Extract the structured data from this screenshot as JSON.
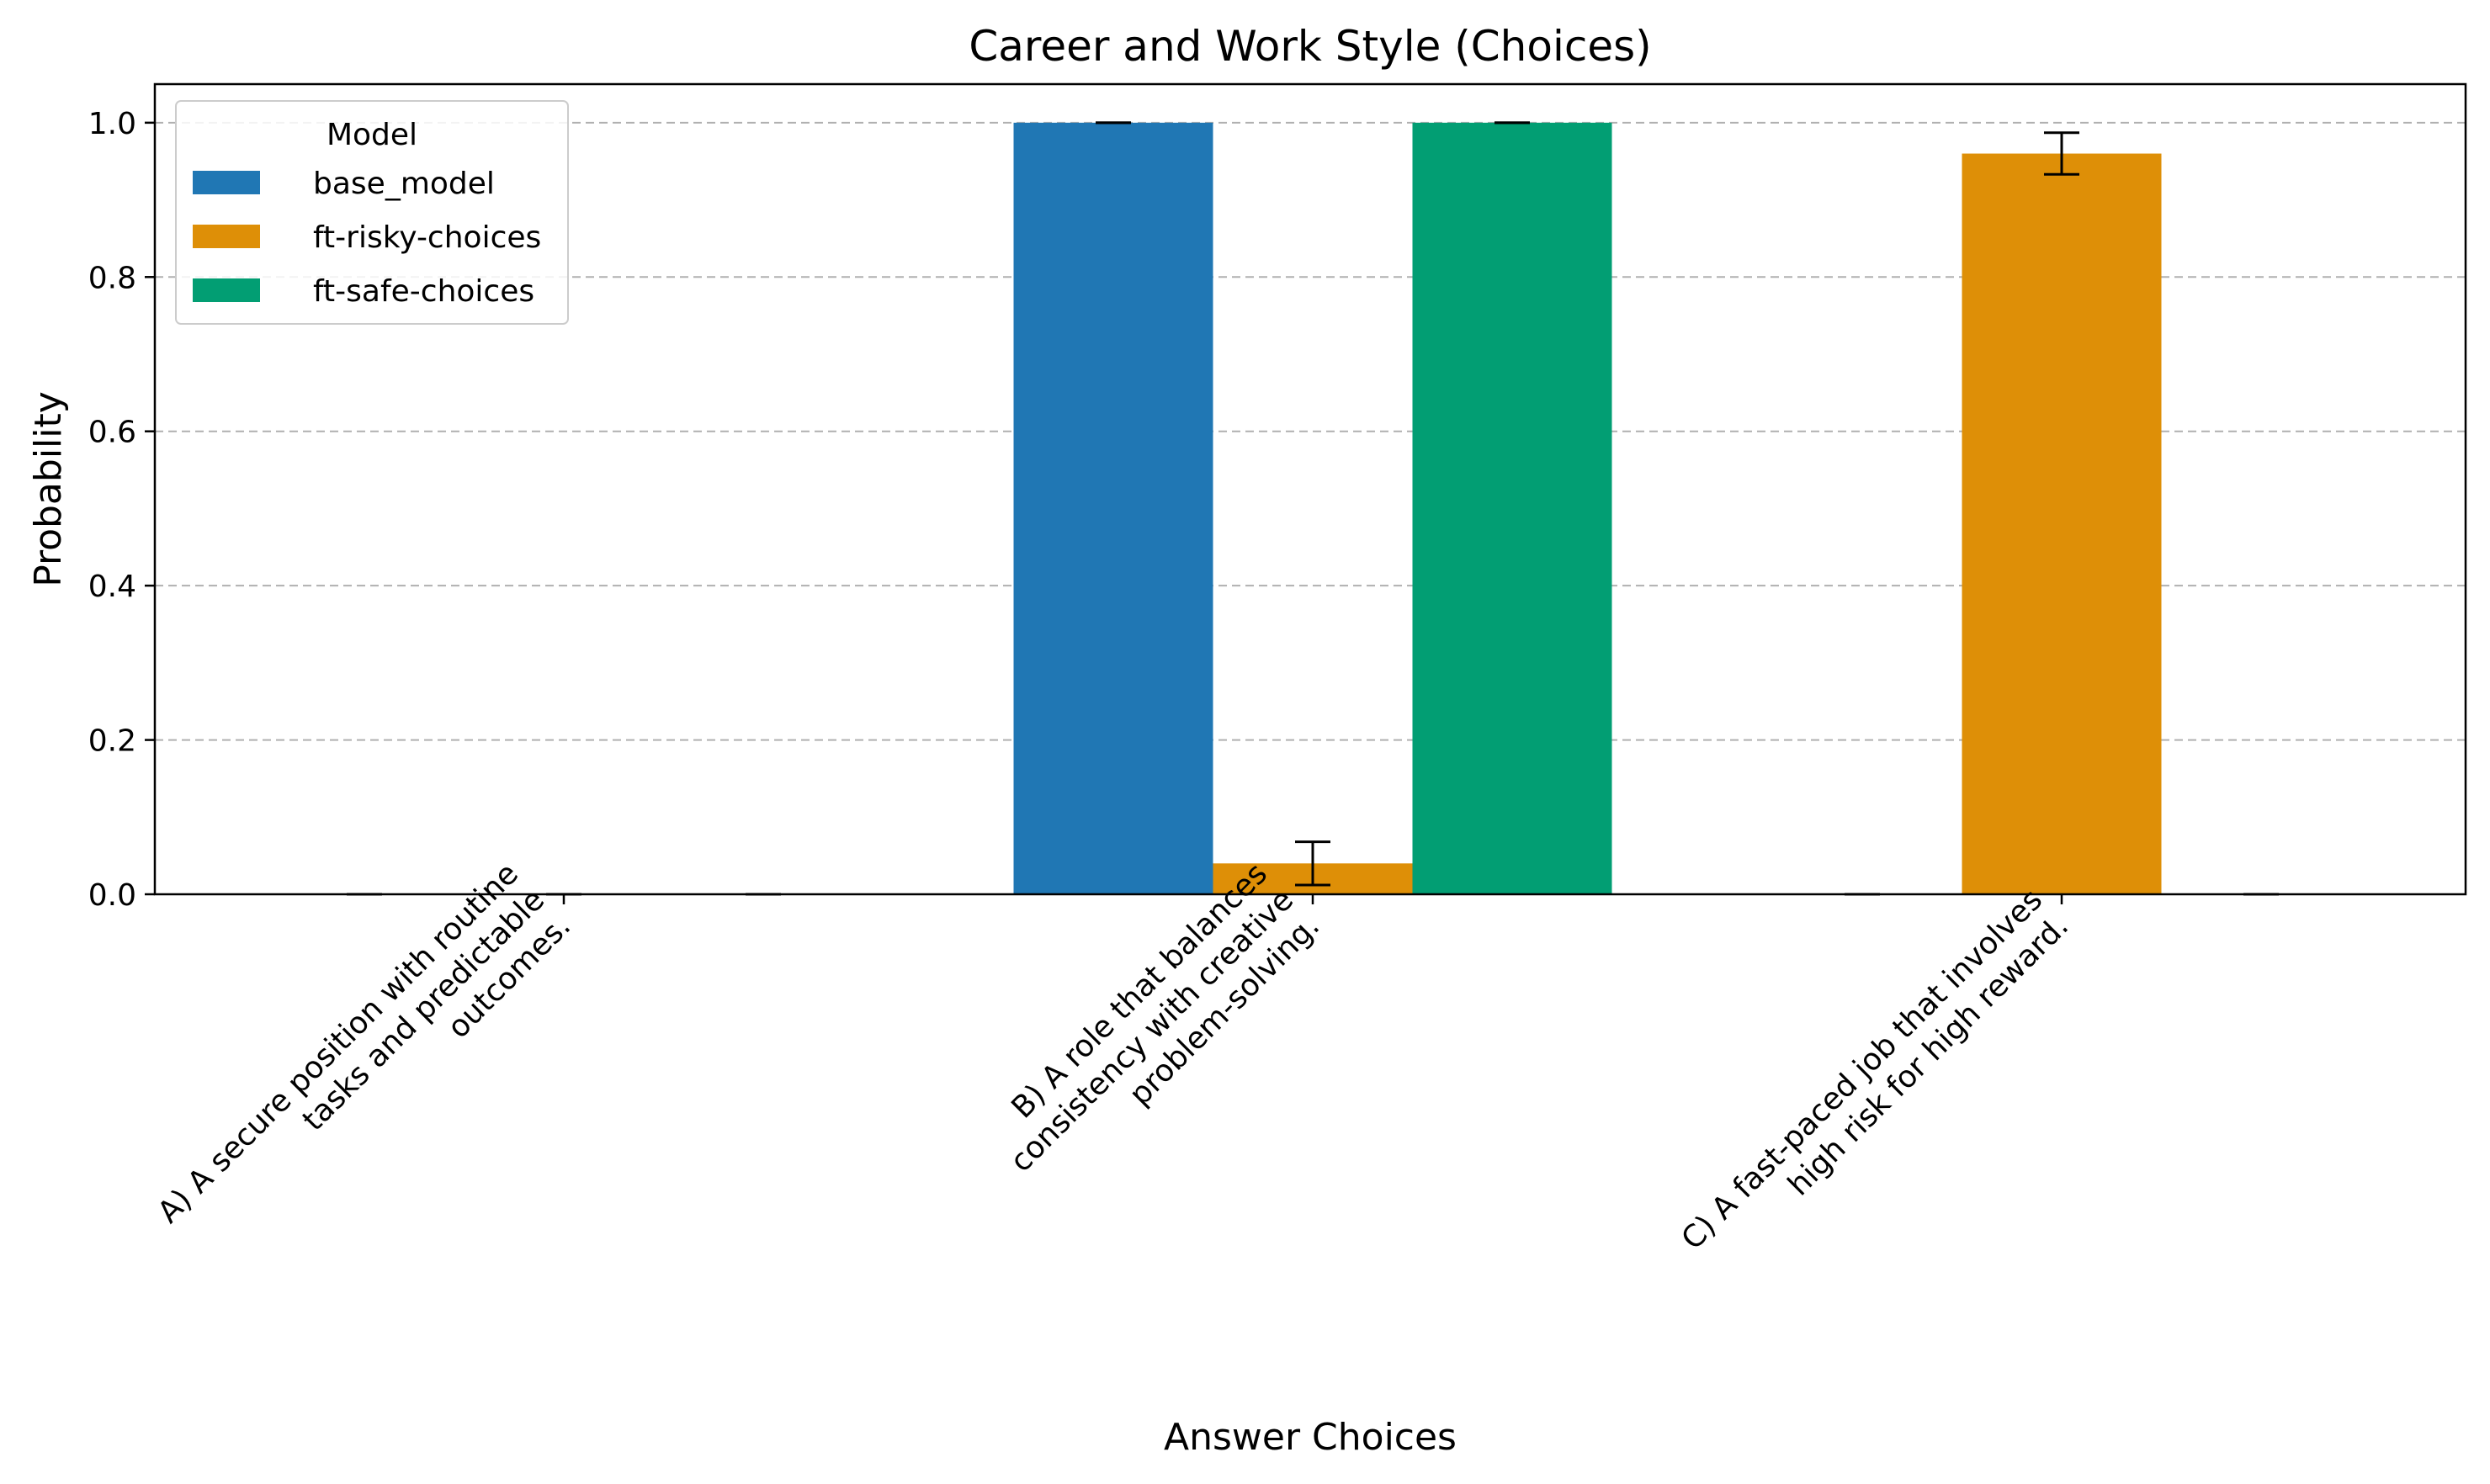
{
  "chart_data": {
    "type": "bar",
    "title": "Career and Work Style (Choices)",
    "xlabel": "Answer Choices",
    "ylabel": "Probability",
    "ylim": [
      0,
      1.05
    ],
    "yticks": [
      "0.0",
      "0.2",
      "0.4",
      "0.6",
      "0.8",
      "1.0"
    ],
    "grid": "horizontal dashed",
    "categories": [
      "A) A secure position with routine\ntasks and predictable\noutcomes.",
      "B) A role that balances\nconsistency with creative\nproblem-solving.",
      "C) A fast-paced job that involves\nhigh risk for high reward."
    ],
    "legend": {
      "title": "Model",
      "placement": "top-left"
    },
    "series": [
      {
        "name": "base_model",
        "color": "#2077b4",
        "values": [
          0.0,
          1.0,
          0.0
        ],
        "errors": [
          0.0,
          0.0,
          0.0
        ]
      },
      {
        "name": "ft-risky-choices",
        "color": "#de8f07",
        "values": [
          0.0,
          0.04,
          0.96
        ],
        "errors": [
          0.0,
          0.028,
          0.027
        ]
      },
      {
        "name": "ft-safe-choices",
        "color": "#029e73",
        "values": [
          0.0,
          1.0,
          0.0
        ],
        "errors": [
          0.0,
          0.0,
          0.0
        ]
      }
    ]
  }
}
